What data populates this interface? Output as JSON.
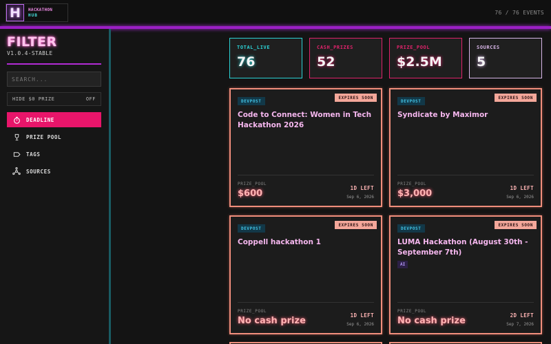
{
  "header": {
    "logo_letter": "H",
    "logo_line1": "HACKATHON",
    "logo_line2": "HUB",
    "event_count": "76 / 76 EVENTS"
  },
  "sidebar": {
    "title": "FILTER",
    "version": "V1.0.4-STABLE",
    "search_placeholder": "SEARCH...",
    "toggle_label": "HIDE $0 PRIZE",
    "toggle_value": "OFF",
    "nav": [
      {
        "label": "DEADLINE",
        "icon": "stopwatch-icon",
        "active": true
      },
      {
        "label": "PRIZE POOL",
        "icon": "trophy-icon",
        "active": false
      },
      {
        "label": "TAGS",
        "icon": "tag-icon",
        "active": false
      },
      {
        "label": "SOURCES",
        "icon": "sources-icon",
        "active": false
      }
    ]
  },
  "stats": [
    {
      "label": "TOTAL_LIVE",
      "value": "76",
      "color": "#2cd3d6"
    },
    {
      "label": "CASH_PRIZES",
      "value": "52",
      "color": "#e0236b"
    },
    {
      "label": "PRIZE_POOL",
      "value": "$2.5M",
      "color": "#e0236b"
    },
    {
      "label": "SOURCES",
      "value": "5",
      "color": "#d8b6e8"
    }
  ],
  "cards": [
    {
      "source": "DEVPOST",
      "badge": "EXPIRES SOON",
      "title": "Code to Connect: Women in Tech Hackathon 2026",
      "tag": "",
      "prize_label": "PRIZE_POOL",
      "prize": "$600",
      "days_left": "1D LEFT",
      "date": "Sep 6, 2026"
    },
    {
      "source": "DEVPOST",
      "badge": "EXPIRES SOON",
      "title": "Syndicate by Maximor",
      "tag": "",
      "prize_label": "PRIZE_POOL",
      "prize": "$3,000",
      "days_left": "1D LEFT",
      "date": "Sep 6, 2026"
    },
    {
      "source": "DEVPOST",
      "badge": "EXPIRES SOON",
      "title": "Coppell hackathon 1",
      "tag": "",
      "prize_label": "PRIZE_POOL",
      "prize": "No cash prize",
      "days_left": "1D LEFT",
      "date": "Sep 6, 2026"
    },
    {
      "source": "DEVPOST",
      "badge": "EXPIRES SOON",
      "title": "LUMA Hackathon (August 30th - September 7th)",
      "tag": "AI",
      "prize_label": "PRIZE_POOL",
      "prize": "No cash prize",
      "days_left": "2D LEFT",
      "date": "Sep 7, 2026"
    }
  ]
}
